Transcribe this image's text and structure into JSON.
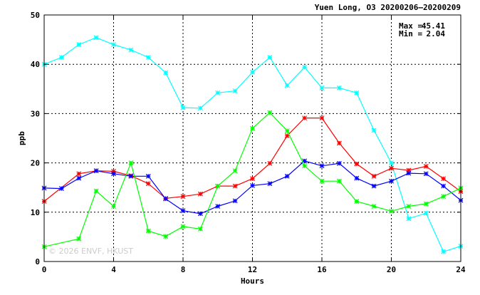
{
  "chart_data": {
    "type": "line",
    "title": "Yuen Long, O3 20200206–20200209",
    "xlabel": "Hours",
    "ylabel": "ppb",
    "xlim": [
      0,
      24
    ],
    "ylim": [
      0,
      50
    ],
    "x_ticks": [
      "0",
      "4",
      "8",
      "12",
      "16",
      "20",
      "24"
    ],
    "y_ticks": [
      "0",
      "10",
      "20",
      "30",
      "40",
      "50"
    ],
    "grid": true,
    "annotations": {
      "max_label": "Max =",
      "max_value": "45.41",
      "min_label": "Min =",
      "min_value": "2.04",
      "watermark": "© 2026  ENVF, HKUST"
    },
    "x": [
      0,
      1,
      2,
      3,
      4,
      5,
      6,
      7,
      8,
      9,
      10,
      11,
      12,
      13,
      14,
      15,
      16,
      17,
      18,
      19,
      20,
      21,
      22,
      23,
      24
    ],
    "series": [
      {
        "color": "#00ffff",
        "values": [
          40.0,
          41.4,
          44.0,
          45.4,
          44.0,
          42.9,
          41.4,
          38.3,
          31.2,
          31.1,
          34.2,
          34.6,
          38.4,
          41.4,
          35.7,
          39.4,
          35.2,
          35.2,
          34.2,
          26.6,
          20.0,
          8.7,
          9.8,
          2.0,
          3.1
        ]
      },
      {
        "color": "#ff0000",
        "values": [
          12.2,
          null,
          17.8,
          18.4,
          18.3,
          17.4,
          15.8,
          12.8,
          13.2,
          13.7,
          15.3,
          15.3,
          16.8,
          19.9,
          25.5,
          29.1,
          29.1,
          24.0,
          19.8,
          17.3,
          18.9,
          18.5,
          19.3,
          16.8,
          14.2
        ]
      },
      {
        "color": "#0000ff",
        "values": [
          14.9,
          14.8,
          16.9,
          18.4,
          17.8,
          17.3,
          17.3,
          12.7,
          10.3,
          9.7,
          11.2,
          12.3,
          15.4,
          15.8,
          17.3,
          20.4,
          19.4,
          19.9,
          16.9,
          15.3,
          16.3,
          17.9,
          17.8,
          15.3,
          12.4
        ]
      },
      {
        "color": "#00ff00",
        "values": [
          3.0,
          null,
          4.6,
          14.3,
          11.2,
          20.0,
          6.2,
          5.1,
          7.1,
          6.6,
          15.3,
          18.4,
          27.0,
          30.2,
          26.5,
          19.4,
          16.3,
          16.3,
          12.2,
          11.2,
          10.2,
          11.2,
          11.7,
          13.2,
          14.9
        ]
      }
    ]
  }
}
